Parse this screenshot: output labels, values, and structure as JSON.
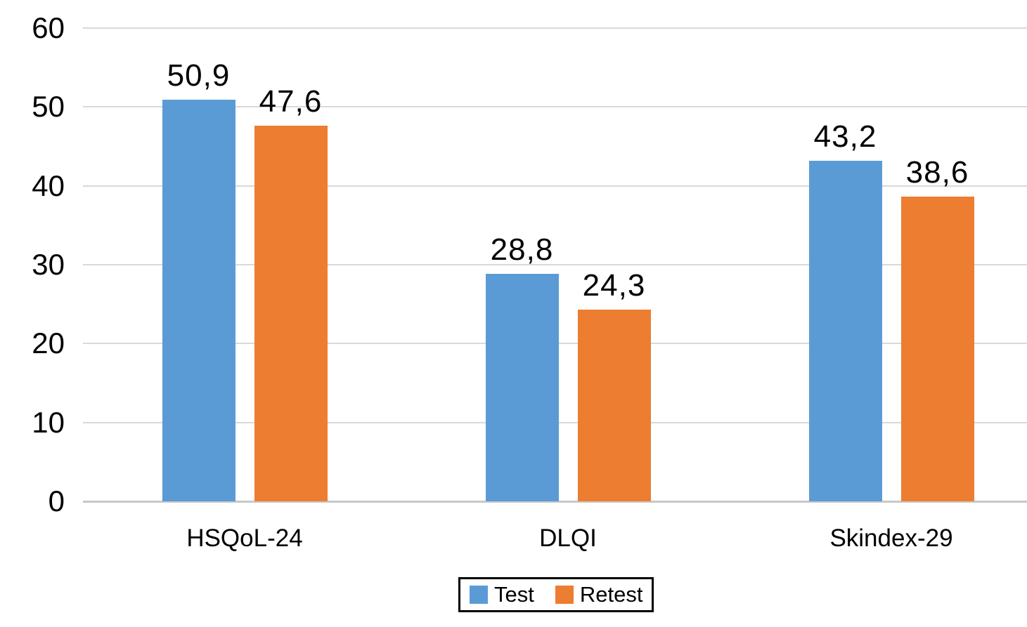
{
  "chart_data": {
    "type": "bar",
    "title": "",
    "xlabel": "",
    "ylabel": "",
    "categories": [
      "HSQoL-24",
      "DLQI",
      "Skindex-29"
    ],
    "series": [
      {
        "name": "Test",
        "color": "#5B9BD5",
        "values": [
          50.9,
          28.8,
          43.2
        ],
        "labels": [
          "50,9",
          "28,8",
          "43,2"
        ]
      },
      {
        "name": "Retest",
        "color": "#ED7D31",
        "values": [
          47.6,
          24.3,
          38.6
        ],
        "labels": [
          "47,6",
          "24,3",
          "38,6"
        ]
      }
    ],
    "ylim": [
      0,
      60
    ],
    "ytick_step": 10,
    "ytick_labels": [
      "0",
      "10",
      "20",
      "30",
      "40",
      "50",
      "60"
    ],
    "decimal_separator": ",",
    "grid": "horizontal",
    "legend_position": "bottom-center"
  },
  "colors": {
    "background": "#FFFFFF",
    "bar_test": "#5B9BD5",
    "bar_retest": "#ED7D31",
    "gridline": "#D9D9D9",
    "axis_line": "#C8C8C8",
    "text": "#000000",
    "legend_border": "#000000"
  }
}
